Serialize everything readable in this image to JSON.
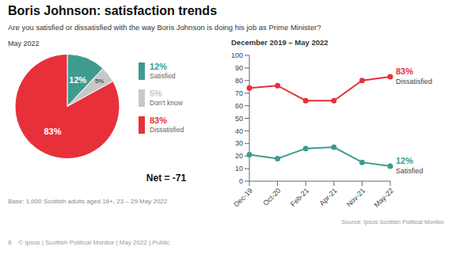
{
  "chart_data": [
    {
      "type": "pie",
      "title": "Boris Johnson: satisfaction trends",
      "subtitle": "Are you satisfied or dissatisfied with the way Boris Johnson is doing his job as Prime Minister?",
      "categories": [
        "Satisfied",
        "Don't know",
        "Dissatisfied"
      ],
      "values": [
        12,
        5,
        83
      ],
      "value_labels": [
        "12%",
        "5%",
        "83%"
      ],
      "colors": [
        "#3d9b8f",
        "#c8c8c8",
        "#e8303a"
      ],
      "data_labels": true,
      "legend": "right",
      "annotations": [
        "May 2022",
        "Net = -71",
        "Base: 1,000 Scottish adults aged 16+, 23 – 29 May 2022"
      ]
    },
    {
      "type": "line",
      "title": "December 2019 – May 2022",
      "categories": [
        "Dec-19",
        "Oct-20",
        "Feb-21",
        "Apr-21",
        "Nov-21",
        "May-22"
      ],
      "series": [
        {
          "name": "Dissatisfied",
          "color": "#e8303a",
          "marker": "circle",
          "values": [
            74,
            76,
            64,
            64,
            80,
            83
          ]
        },
        {
          "name": "Satisfied",
          "color": "#3d9b8f",
          "marker": "circle",
          "values": [
            21,
            18,
            26,
            27,
            15,
            12
          ]
        }
      ],
      "ylim": [
        0,
        100
      ],
      "yticks": [
        0,
        10,
        20,
        30,
        40,
        50,
        60,
        70,
        80,
        90,
        100
      ],
      "grid": false,
      "annotations": [
        {
          "text": "83%",
          "x": "May-22",
          "y": 83
        },
        {
          "text": "12%",
          "x": "May-22",
          "y": 12
        },
        "Source: Ipsos Scottish Political Monitor",
        "8    © Ipsos | Scottish Political Monitor | May 2022 | Public"
      ]
    }
  ]
}
